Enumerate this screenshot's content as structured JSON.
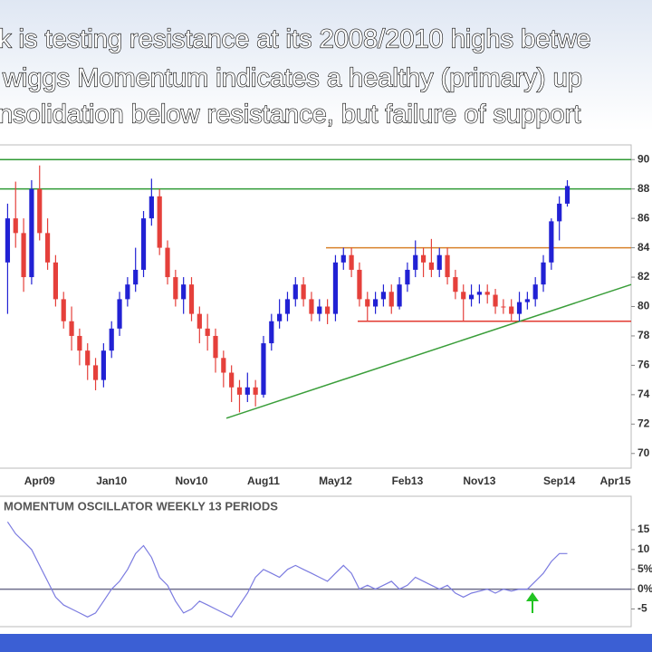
{
  "slide": {
    "title_lines": [
      "k is testing resistance at its 2008/2010 highs betwe",
      "wiggs Momentum indicates a healthy (primary) up",
      "nsolidation below resistance, but failure of support"
    ]
  },
  "chart_data": [
    {
      "type": "candlestick",
      "categories": [
        null,
        null,
        null,
        null,
        "Apr09",
        null,
        null,
        null,
        null,
        null,
        null,
        null,
        null,
        "Jan10",
        null,
        null,
        null,
        null,
        null,
        null,
        null,
        null,
        null,
        "Nov10",
        null,
        null,
        null,
        null,
        null,
        null,
        null,
        null,
        "Aug11",
        null,
        null,
        null,
        null,
        null,
        null,
        null,
        null,
        "May12",
        null,
        null,
        null,
        null,
        null,
        null,
        null,
        null,
        "Feb13",
        null,
        null,
        null,
        null,
        null,
        null,
        null,
        null,
        "Nov13",
        null,
        null,
        null,
        null,
        null,
        null,
        null,
        null,
        null,
        "Sep14",
        null,
        null,
        null,
        null,
        null,
        null,
        "Apr15"
      ],
      "open": [
        83,
        86,
        85,
        82,
        88,
        85,
        83,
        80.5,
        79,
        78,
        77,
        76,
        75,
        77,
        78.5,
        80.5,
        81.5,
        82.5,
        86,
        87.5,
        84,
        82,
        80.5,
        81.5,
        79.5,
        78.5,
        78,
        76.5,
        75.5,
        74.5,
        74,
        74.5,
        74,
        77.5,
        79,
        79.5,
        80.5,
        81.5,
        80.5,
        79.5,
        80,
        79.5,
        83,
        83.5,
        82.5,
        80.5,
        80,
        80.5,
        81,
        80,
        81.5,
        82.5,
        83.5,
        83,
        82.5,
        83.5,
        82,
        81,
        80.5,
        80.8,
        81,
        80.8,
        80,
        80,
        79.5,
        80.3,
        80.5,
        81.5,
        83,
        85.8,
        87,
        null,
        null,
        null,
        null,
        null,
        null
      ],
      "high": [
        87,
        88.5,
        86,
        88.6,
        89.6,
        86,
        83.5,
        81,
        80,
        78.5,
        77.5,
        76.5,
        77.5,
        79,
        81,
        82,
        84,
        86.5,
        88.7,
        88,
        84.5,
        82.5,
        82,
        82,
        80,
        79.5,
        78.5,
        77,
        76,
        75,
        75.5,
        75,
        78,
        79.5,
        80.5,
        81,
        82,
        82,
        81,
        80.5,
        80.5,
        83.5,
        84,
        84,
        83,
        81,
        81,
        81.5,
        81.5,
        82,
        83,
        84.5,
        84,
        84.6,
        84,
        84,
        82.5,
        81.5,
        81.5,
        81.5,
        81.5,
        81.2,
        80.5,
        80.5,
        81,
        81,
        82,
        83.5,
        86,
        87.5,
        88.6,
        null,
        null,
        null,
        null,
        null,
        null
      ],
      "low": [
        79.5,
        84,
        81,
        81.5,
        84.5,
        82.5,
        80,
        78.5,
        77,
        76,
        75,
        74.3,
        74.5,
        76.5,
        78,
        80,
        81,
        82,
        85.5,
        83.5,
        81.5,
        80,
        79.5,
        79,
        77.5,
        77,
        75.5,
        74.5,
        73.5,
        72.8,
        73.5,
        73.2,
        73.8,
        77,
        78.5,
        79,
        80,
        80,
        79,
        79,
        78.8,
        79,
        82.5,
        82,
        80,
        79,
        79.5,
        80,
        79.5,
        79.8,
        81,
        82,
        82,
        82,
        82,
        81.5,
        80.5,
        79,
        80,
        80.2,
        80.2,
        79.5,
        79.5,
        79,
        79,
        79.8,
        80,
        81,
        82.5,
        84.5,
        86.8,
        null,
        null,
        null,
        null,
        null,
        null
      ],
      "close": [
        86,
        85,
        82,
        88,
        85,
        83,
        80.5,
        79,
        78,
        77,
        76,
        75,
        77,
        78.5,
        80.5,
        81.5,
        82.5,
        86,
        87.5,
        84,
        82,
        80.5,
        81.5,
        79.5,
        78.5,
        78,
        76.5,
        75.5,
        74.5,
        74,
        74.5,
        74,
        77.5,
        79,
        79.5,
        80.5,
        81.5,
        80.5,
        79.5,
        80,
        79.5,
        83,
        83.5,
        82.5,
        80.5,
        80,
        80.5,
        81,
        80,
        81.5,
        82.5,
        83.5,
        83,
        82.5,
        83.5,
        82,
        81,
        80.5,
        80.8,
        81,
        80.8,
        80,
        80,
        79.5,
        80.3,
        80.5,
        81.5,
        83,
        85.8,
        87,
        88.2,
        null,
        null,
        null,
        null,
        null,
        null
      ],
      "up_color": "#2121d4",
      "down_color": "#e5403b",
      "ylim": [
        69,
        91
      ],
      "yticks": [
        90,
        88,
        86,
        84,
        82,
        80,
        78,
        76,
        74,
        72,
        70
      ],
      "reference_lines": [
        {
          "value": 90,
          "color": "#2f9a35"
        },
        {
          "value": 88,
          "color": "#2f9a35"
        },
        {
          "value": 84,
          "color": "#d9822b"
        },
        {
          "value": 79,
          "color": "#e23a32"
        }
      ],
      "trend_line": {
        "from": 72.4,
        "to": 81.5,
        "color": "#3a9e3a"
      }
    },
    {
      "type": "line",
      "title": "MOMENTUM OSCILLATOR WEEKLY 13 PERIODS",
      "values": [
        17,
        14,
        12,
        10,
        6,
        2,
        -2,
        -4,
        -5,
        -6,
        -7,
        -6,
        -3,
        0,
        2,
        5,
        9,
        11,
        8,
        3,
        1,
        -3,
        -6,
        -5,
        -3,
        -4,
        -5,
        -6,
        -7,
        -4,
        -1,
        3,
        5,
        4,
        3,
        5,
        6,
        5,
        4,
        3,
        2,
        4,
        6,
        4,
        0,
        1,
        0,
        1,
        2,
        0,
        1,
        3,
        2,
        1,
        0,
        1,
        -1,
        -2,
        -1,
        -0.5,
        0,
        -1,
        0,
        -0.5,
        0,
        0,
        2,
        4,
        7,
        9,
        9,
        null,
        null,
        null,
        null,
        null,
        null
      ],
      "color": "#7b7be0",
      "ylim": [
        -9,
        23
      ],
      "yticks": [
        15,
        10,
        {
          "value": 5,
          "label": "5%"
        },
        {
          "value": 0,
          "label": "0%"
        },
        -5
      ],
      "reference_lines": [
        {
          "value": 0,
          "color": "#6e6e8c"
        }
      ]
    }
  ]
}
